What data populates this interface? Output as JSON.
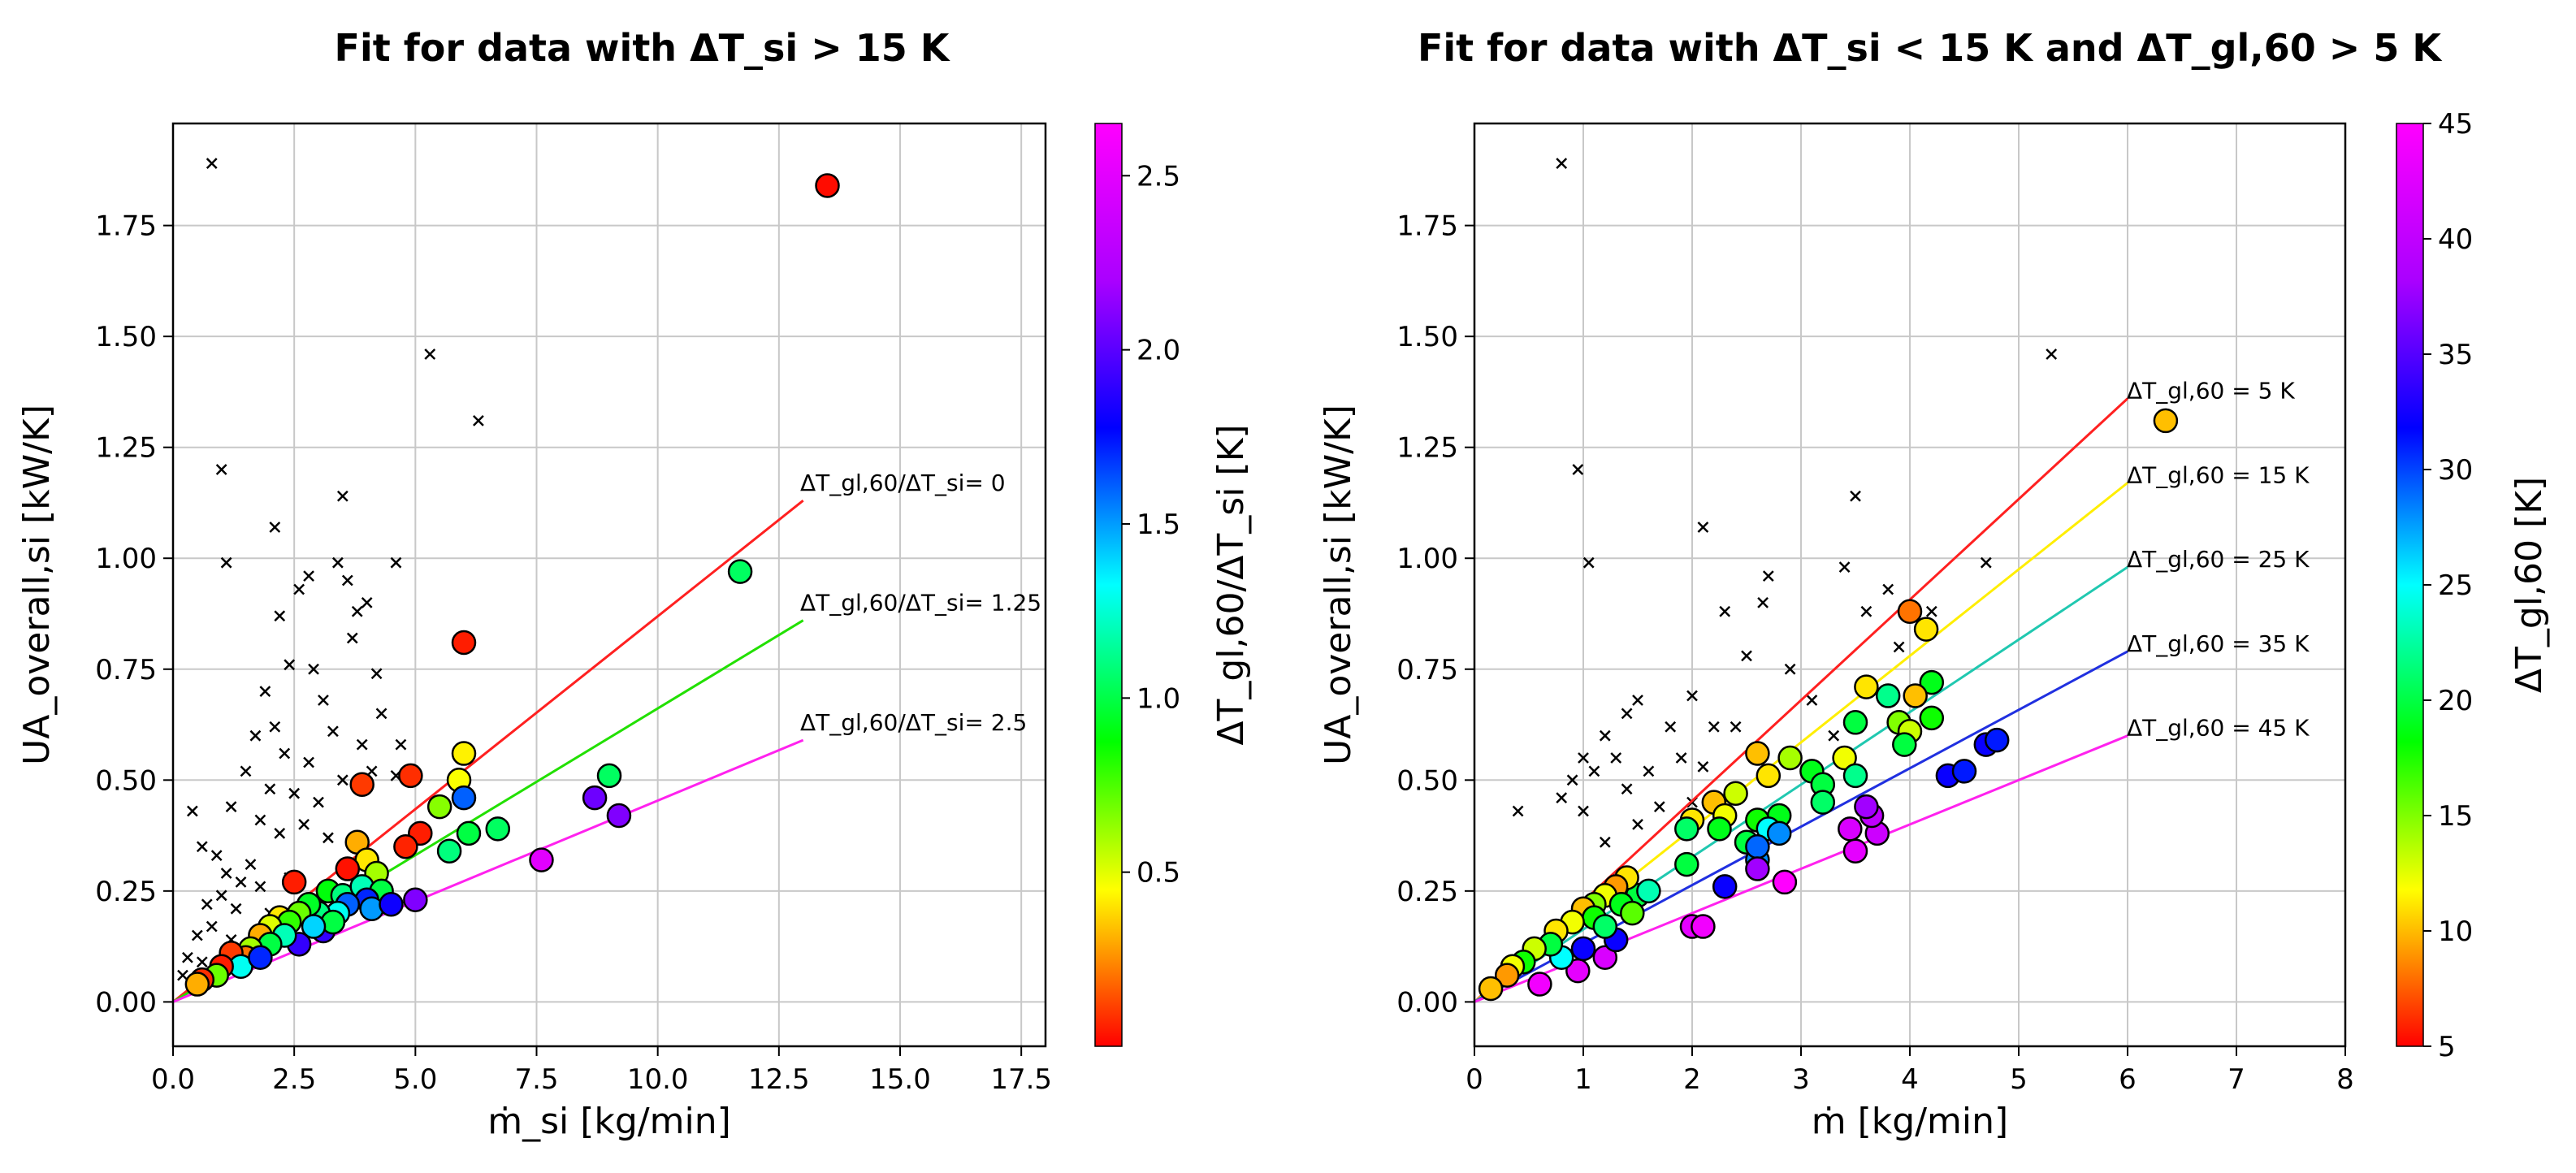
{
  "figure": {
    "left_title": "Fit for data with ΔT_si > 15 K",
    "right_title": "Fit for data with ΔT_si < 15 K and ΔT_gl,60 > 5 K"
  },
  "chart_data": [
    {
      "type": "scatter",
      "title": "Fit for data with ΔT_si > 15 K",
      "xlabel": "ṁ_si  [kg/min]",
      "ylabel": "UA_overall,si [kW/K]",
      "xlim": [
        0,
        18
      ],
      "ylim": [
        -0.1,
        1.98
      ],
      "xticks": [
        0.0,
        2.5,
        5.0,
        7.5,
        10.0,
        12.5,
        15.0,
        17.5
      ],
      "yticks": [
        0.0,
        0.25,
        0.5,
        0.75,
        1.0,
        1.25,
        1.5,
        1.75
      ],
      "xtick_labels": [
        "0.0",
        "2.5",
        "5.0",
        "7.5",
        "10.0",
        "12.5",
        "15.0",
        "17.5"
      ],
      "ytick_labels": [
        "0.00",
        "0.25",
        "0.50",
        "0.75",
        "1.00",
        "1.25",
        "1.50",
        "1.75"
      ],
      "grid": true,
      "colorbar": {
        "label": "ΔT_gl,60/ΔT_si [K]",
        "min": 0.0,
        "max": 2.65,
        "ticks": [
          0.5,
          1.0,
          1.5,
          2.0,
          2.5
        ],
        "tick_labels": [
          "0.5",
          "1.0",
          "1.5",
          "2.0",
          "2.5"
        ]
      },
      "fit_lines": [
        {
          "label": "ΔT_gl,60/ΔT_si= 0",
          "x": [
            0,
            13
          ],
          "y": [
            0,
            1.13
          ],
          "color": "#ff2020"
        },
        {
          "label": "ΔT_gl,60/ΔT_si= 1.25",
          "x": [
            0,
            13
          ],
          "y": [
            0,
            0.86
          ],
          "color": "#22e000"
        },
        {
          "label": "ΔT_gl,60/ΔT_si= 2.5",
          "x": [
            0,
            13
          ],
          "y": [
            0,
            0.59
          ],
          "color": "#ff22ee"
        }
      ],
      "excluded_points": [
        [
          0.8,
          1.89
        ],
        [
          1.0,
          1.2
        ],
        [
          1.1,
          0.99
        ],
        [
          2.1,
          1.07
        ],
        [
          3.5,
          1.14
        ],
        [
          5.3,
          1.46
        ],
        [
          6.3,
          1.31
        ],
        [
          4.6,
          0.99
        ],
        [
          3.8,
          0.88
        ],
        [
          4.0,
          0.9
        ],
        [
          2.8,
          0.96
        ],
        [
          3.4,
          0.99
        ],
        [
          2.2,
          0.87
        ],
        [
          2.6,
          0.93
        ],
        [
          3.6,
          0.95
        ],
        [
          2.4,
          0.76
        ],
        [
          2.9,
          0.75
        ],
        [
          3.7,
          0.82
        ],
        [
          4.2,
          0.74
        ],
        [
          1.9,
          0.7
        ],
        [
          2.1,
          0.62
        ],
        [
          3.1,
          0.68
        ],
        [
          3.3,
          0.61
        ],
        [
          1.7,
          0.6
        ],
        [
          2.3,
          0.56
        ],
        [
          2.8,
          0.54
        ],
        [
          3.9,
          0.58
        ],
        [
          4.3,
          0.65
        ],
        [
          4.7,
          0.58
        ],
        [
          1.5,
          0.52
        ],
        [
          2.0,
          0.48
        ],
        [
          2.5,
          0.47
        ],
        [
          3.0,
          0.45
        ],
        [
          3.5,
          0.5
        ],
        [
          4.1,
          0.52
        ],
        [
          4.6,
          0.51
        ],
        [
          1.2,
          0.44
        ],
        [
          1.8,
          0.41
        ],
        [
          2.2,
          0.38
        ],
        [
          2.7,
          0.4
        ],
        [
          3.2,
          0.37
        ],
        [
          0.4,
          0.43
        ],
        [
          0.6,
          0.35
        ],
        [
          0.9,
          0.33
        ],
        [
          1.1,
          0.29
        ],
        [
          1.4,
          0.27
        ],
        [
          1.6,
          0.31
        ],
        [
          0.7,
          0.22
        ],
        [
          1.0,
          0.24
        ],
        [
          1.3,
          0.21
        ],
        [
          1.8,
          0.26
        ],
        [
          2.4,
          0.28
        ],
        [
          0.3,
          0.1
        ],
        [
          0.5,
          0.15
        ],
        [
          0.8,
          0.17
        ],
        [
          1.2,
          0.14
        ],
        [
          1.5,
          0.12
        ],
        [
          2.0,
          0.2
        ],
        [
          0.2,
          0.06
        ],
        [
          0.6,
          0.09
        ]
      ],
      "points": [
        {
          "x": 13.5,
          "y": 1.84,
          "c": 0.02
        },
        {
          "x": 11.7,
          "y": 0.97,
          "c": 1.05
        },
        {
          "x": 6.0,
          "y": 0.81,
          "c": 0.05
        },
        {
          "x": 4.9,
          "y": 0.51,
          "c": 0.08
        },
        {
          "x": 3.9,
          "y": 0.49,
          "c": 0.1
        },
        {
          "x": 6.0,
          "y": 0.56,
          "c": 0.42
        },
        {
          "x": 5.9,
          "y": 0.5,
          "c": 0.45
        },
        {
          "x": 5.5,
          "y": 0.44,
          "c": 0.65
        },
        {
          "x": 6.0,
          "y": 0.46,
          "c": 1.6
        },
        {
          "x": 6.7,
          "y": 0.39,
          "c": 1.05
        },
        {
          "x": 6.1,
          "y": 0.38,
          "c": 1.0
        },
        {
          "x": 5.7,
          "y": 0.34,
          "c": 1.1
        },
        {
          "x": 9.0,
          "y": 0.51,
          "c": 1.05
        },
        {
          "x": 8.7,
          "y": 0.46,
          "c": 2.05
        },
        {
          "x": 9.2,
          "y": 0.42,
          "c": 2.1
        },
        {
          "x": 7.6,
          "y": 0.32,
          "c": 2.5
        },
        {
          "x": 5.1,
          "y": 0.38,
          "c": 0.05
        },
        {
          "x": 4.8,
          "y": 0.35,
          "c": 0.06
        },
        {
          "x": 3.8,
          "y": 0.36,
          "c": 0.3
        },
        {
          "x": 4.0,
          "y": 0.32,
          "c": 0.4
        },
        {
          "x": 4.2,
          "y": 0.29,
          "c": 0.6
        },
        {
          "x": 3.6,
          "y": 0.3,
          "c": 0.03
        },
        {
          "x": 2.5,
          "y": 0.27,
          "c": 0.05
        },
        {
          "x": 3.2,
          "y": 0.25,
          "c": 0.9
        },
        {
          "x": 3.5,
          "y": 0.24,
          "c": 1.1
        },
        {
          "x": 3.9,
          "y": 0.26,
          "c": 1.2
        },
        {
          "x": 4.3,
          "y": 0.25,
          "c": 1.0
        },
        {
          "x": 4.0,
          "y": 0.23,
          "c": 1.7
        },
        {
          "x": 4.1,
          "y": 0.21,
          "c": 1.5
        },
        {
          "x": 3.6,
          "y": 0.22,
          "c": 1.6
        },
        {
          "x": 5.0,
          "y": 0.23,
          "c": 2.1
        },
        {
          "x": 4.5,
          "y": 0.22,
          "c": 1.8
        },
        {
          "x": 3.4,
          "y": 0.2,
          "c": 1.3
        },
        {
          "x": 3.0,
          "y": 0.2,
          "c": 1.1
        },
        {
          "x": 2.8,
          "y": 0.22,
          "c": 0.95
        },
        {
          "x": 3.1,
          "y": 0.16,
          "c": 1.9
        },
        {
          "x": 2.6,
          "y": 0.13,
          "c": 1.9
        },
        {
          "x": 2.6,
          "y": 0.2,
          "c": 0.7
        },
        {
          "x": 2.2,
          "y": 0.19,
          "c": 0.4
        },
        {
          "x": 2.4,
          "y": 0.18,
          "c": 0.8
        },
        {
          "x": 2.0,
          "y": 0.17,
          "c": 0.5
        },
        {
          "x": 1.8,
          "y": 0.15,
          "c": 0.3
        },
        {
          "x": 2.3,
          "y": 0.15,
          "c": 1.2
        },
        {
          "x": 2.0,
          "y": 0.13,
          "c": 1.0
        },
        {
          "x": 1.6,
          "y": 0.12,
          "c": 0.6
        },
        {
          "x": 1.5,
          "y": 0.1,
          "c": 0.2
        },
        {
          "x": 1.2,
          "y": 0.11,
          "c": 0.1
        },
        {
          "x": 1.4,
          "y": 0.08,
          "c": 1.3
        },
        {
          "x": 1.0,
          "y": 0.08,
          "c": 0.05
        },
        {
          "x": 0.9,
          "y": 0.06,
          "c": 0.7
        },
        {
          "x": 0.6,
          "y": 0.05,
          "c": 0.08
        },
        {
          "x": 0.5,
          "y": 0.04,
          "c": 0.3
        },
        {
          "x": 1.8,
          "y": 0.1,
          "c": 1.7
        },
        {
          "x": 3.3,
          "y": 0.18,
          "c": 1.0
        },
        {
          "x": 2.9,
          "y": 0.17,
          "c": 1.4
        }
      ]
    },
    {
      "type": "scatter",
      "title": "Fit for data with ΔT_si < 15 K and ΔT_gl,60 > 5 K",
      "xlabel": "ṁ  [kg/min]",
      "ylabel": "UA_overall,si [kW/K]",
      "xlim": [
        0,
        8
      ],
      "ylim": [
        -0.1,
        1.98
      ],
      "xticks": [
        0,
        1,
        2,
        3,
        4,
        5,
        6,
        7,
        8
      ],
      "yticks": [
        0.0,
        0.25,
        0.5,
        0.75,
        1.0,
        1.25,
        1.5,
        1.75
      ],
      "xtick_labels": [
        "0",
        "1",
        "2",
        "3",
        "4",
        "5",
        "6",
        "7",
        "8"
      ],
      "ytick_labels": [
        "0.00",
        "0.25",
        "0.50",
        "0.75",
        "1.00",
        "1.25",
        "1.50",
        "1.75"
      ],
      "grid": true,
      "colorbar": {
        "label": "ΔT_gl,60  [K]",
        "min": 5,
        "max": 45,
        "ticks": [
          5,
          10,
          15,
          20,
          25,
          30,
          35,
          40,
          45
        ],
        "tick_labels": [
          "5",
          "10",
          "15",
          "20",
          "25",
          "30",
          "35",
          "40",
          "45"
        ]
      },
      "fit_lines": [
        {
          "label": "ΔT_gl,60 = 5 K",
          "x": [
            0,
            6
          ],
          "y": [
            0,
            1.36
          ],
          "color": "#ff2020"
        },
        {
          "label": "ΔT_gl,60 = 15 K",
          "x": [
            0,
            6
          ],
          "y": [
            0,
            1.17
          ],
          "color": "#ffee00"
        },
        {
          "label": "ΔT_gl,60 = 25 K",
          "x": [
            0,
            6
          ],
          "y": [
            0,
            0.98
          ],
          "color": "#20c8b0"
        },
        {
          "label": "ΔT_gl,60 = 35 K",
          "x": [
            0,
            6
          ],
          "y": [
            0,
            0.79
          ],
          "color": "#2030e0"
        },
        {
          "label": "ΔT_gl,60 = 45 K",
          "x": [
            0,
            6
          ],
          "y": [
            0,
            0.6
          ],
          "color": "#ff22ee"
        }
      ],
      "excluded_points": [
        [
          0.8,
          1.89
        ],
        [
          0.95,
          1.2
        ],
        [
          1.05,
          0.99
        ],
        [
          2.1,
          1.07
        ],
        [
          3.5,
          1.14
        ],
        [
          5.3,
          1.46
        ],
        [
          4.7,
          0.99
        ],
        [
          3.8,
          0.93
        ],
        [
          2.7,
          0.96
        ],
        [
          3.4,
          0.98
        ],
        [
          2.3,
          0.88
        ],
        [
          2.65,
          0.9
        ],
        [
          3.6,
          0.88
        ],
        [
          2.5,
          0.78
        ],
        [
          2.9,
          0.75
        ],
        [
          3.9,
          0.8
        ],
        [
          4.2,
          0.88
        ],
        [
          2.0,
          0.69
        ],
        [
          2.2,
          0.62
        ],
        [
          3.1,
          0.68
        ],
        [
          3.3,
          0.6
        ],
        [
          1.8,
          0.62
        ],
        [
          1.4,
          0.65
        ],
        [
          1.5,
          0.68
        ],
        [
          1.2,
          0.6
        ],
        [
          1.3,
          0.55
        ],
        [
          1.0,
          0.55
        ],
        [
          1.1,
          0.52
        ],
        [
          0.9,
          0.5
        ],
        [
          0.8,
          0.46
        ],
        [
          0.4,
          0.43
        ],
        [
          1.6,
          0.52
        ],
        [
          1.9,
          0.55
        ],
        [
          2.1,
          0.53
        ],
        [
          2.4,
          0.62
        ],
        [
          1.4,
          0.48
        ],
        [
          1.7,
          0.44
        ],
        [
          2.0,
          0.45
        ],
        [
          1.5,
          0.4
        ],
        [
          1.0,
          0.43
        ],
        [
          1.2,
          0.36
        ]
      ],
      "points": [
        {
          "x": 6.35,
          "y": 1.31,
          "c": 10
        },
        {
          "x": 4.0,
          "y": 0.88,
          "c": 8
        },
        {
          "x": 4.15,
          "y": 0.84,
          "c": 11
        },
        {
          "x": 4.2,
          "y": 0.72,
          "c": 19
        },
        {
          "x": 3.6,
          "y": 0.71,
          "c": 11
        },
        {
          "x": 3.8,
          "y": 0.69,
          "c": 22
        },
        {
          "x": 4.05,
          "y": 0.69,
          "c": 10
        },
        {
          "x": 4.2,
          "y": 0.64,
          "c": 18
        },
        {
          "x": 3.9,
          "y": 0.63,
          "c": 15
        },
        {
          "x": 3.5,
          "y": 0.63,
          "c": 20
        },
        {
          "x": 4.0,
          "y": 0.61,
          "c": 13
        },
        {
          "x": 3.95,
          "y": 0.58,
          "c": 20
        },
        {
          "x": 3.4,
          "y": 0.55,
          "c": 12
        },
        {
          "x": 2.9,
          "y": 0.55,
          "c": 14
        },
        {
          "x": 2.6,
          "y": 0.56,
          "c": 10
        },
        {
          "x": 3.1,
          "y": 0.52,
          "c": 19
        },
        {
          "x": 2.7,
          "y": 0.51,
          "c": 11
        },
        {
          "x": 2.4,
          "y": 0.47,
          "c": 13
        },
        {
          "x": 2.2,
          "y": 0.45,
          "c": 10
        },
        {
          "x": 3.5,
          "y": 0.51,
          "c": 22
        },
        {
          "x": 3.2,
          "y": 0.49,
          "c": 20
        },
        {
          "x": 2.8,
          "y": 0.42,
          "c": 19
        },
        {
          "x": 2.6,
          "y": 0.41,
          "c": 18
        },
        {
          "x": 2.3,
          "y": 0.42,
          "c": 12
        },
        {
          "x": 2.0,
          "y": 0.41,
          "c": 11
        },
        {
          "x": 1.95,
          "y": 0.39,
          "c": 21
        },
        {
          "x": 2.25,
          "y": 0.39,
          "c": 19
        },
        {
          "x": 2.5,
          "y": 0.36,
          "c": 20
        },
        {
          "x": 2.7,
          "y": 0.39,
          "c": 25
        },
        {
          "x": 3.2,
          "y": 0.45,
          "c": 21
        },
        {
          "x": 1.95,
          "y": 0.31,
          "c": 20
        },
        {
          "x": 2.6,
          "y": 0.32,
          "c": 28
        },
        {
          "x": 2.6,
          "y": 0.35,
          "c": 29
        },
        {
          "x": 2.8,
          "y": 0.38,
          "c": 28
        },
        {
          "x": 2.3,
          "y": 0.26,
          "c": 32
        },
        {
          "x": 2.6,
          "y": 0.3,
          "c": 38
        },
        {
          "x": 2.85,
          "y": 0.27,
          "c": 45
        },
        {
          "x": 3.5,
          "y": 0.34,
          "c": 43
        },
        {
          "x": 3.7,
          "y": 0.38,
          "c": 41
        },
        {
          "x": 3.45,
          "y": 0.39,
          "c": 42
        },
        {
          "x": 3.65,
          "y": 0.42,
          "c": 40
        },
        {
          "x": 3.6,
          "y": 0.44,
          "c": 38
        },
        {
          "x": 4.35,
          "y": 0.51,
          "c": 32
        },
        {
          "x": 4.5,
          "y": 0.52,
          "c": 31
        },
        {
          "x": 4.7,
          "y": 0.58,
          "c": 32
        },
        {
          "x": 4.8,
          "y": 0.59,
          "c": 31
        },
        {
          "x": 2.0,
          "y": 0.17,
          "c": 43
        },
        {
          "x": 2.1,
          "y": 0.17,
          "c": 44
        },
        {
          "x": 1.2,
          "y": 0.1,
          "c": 42
        },
        {
          "x": 0.95,
          "y": 0.07,
          "c": 43
        },
        {
          "x": 0.6,
          "y": 0.04,
          "c": 44
        },
        {
          "x": 1.3,
          "y": 0.14,
          "c": 32
        },
        {
          "x": 1.0,
          "y": 0.12,
          "c": 32
        },
        {
          "x": 0.8,
          "y": 0.1,
          "c": 25
        },
        {
          "x": 1.5,
          "y": 0.24,
          "c": 20
        },
        {
          "x": 1.6,
          "y": 0.25,
          "c": 23
        },
        {
          "x": 1.4,
          "y": 0.28,
          "c": 11
        },
        {
          "x": 1.3,
          "y": 0.26,
          "c": 9
        },
        {
          "x": 1.2,
          "y": 0.24,
          "c": 12
        },
        {
          "x": 1.1,
          "y": 0.22,
          "c": 15
        },
        {
          "x": 1.0,
          "y": 0.21,
          "c": 10
        },
        {
          "x": 1.1,
          "y": 0.19,
          "c": 18
        },
        {
          "x": 0.9,
          "y": 0.18,
          "c": 12
        },
        {
          "x": 0.75,
          "y": 0.16,
          "c": 11
        },
        {
          "x": 0.7,
          "y": 0.13,
          "c": 20
        },
        {
          "x": 0.55,
          "y": 0.12,
          "c": 13
        },
        {
          "x": 0.45,
          "y": 0.09,
          "c": 18
        },
        {
          "x": 0.35,
          "y": 0.08,
          "c": 12
        },
        {
          "x": 0.3,
          "y": 0.06,
          "c": 9
        },
        {
          "x": 0.15,
          "y": 0.03,
          "c": 10
        },
        {
          "x": 1.35,
          "y": 0.22,
          "c": 19
        },
        {
          "x": 1.45,
          "y": 0.2,
          "c": 16
        },
        {
          "x": 1.2,
          "y": 0.17,
          "c": 21
        }
      ]
    }
  ]
}
